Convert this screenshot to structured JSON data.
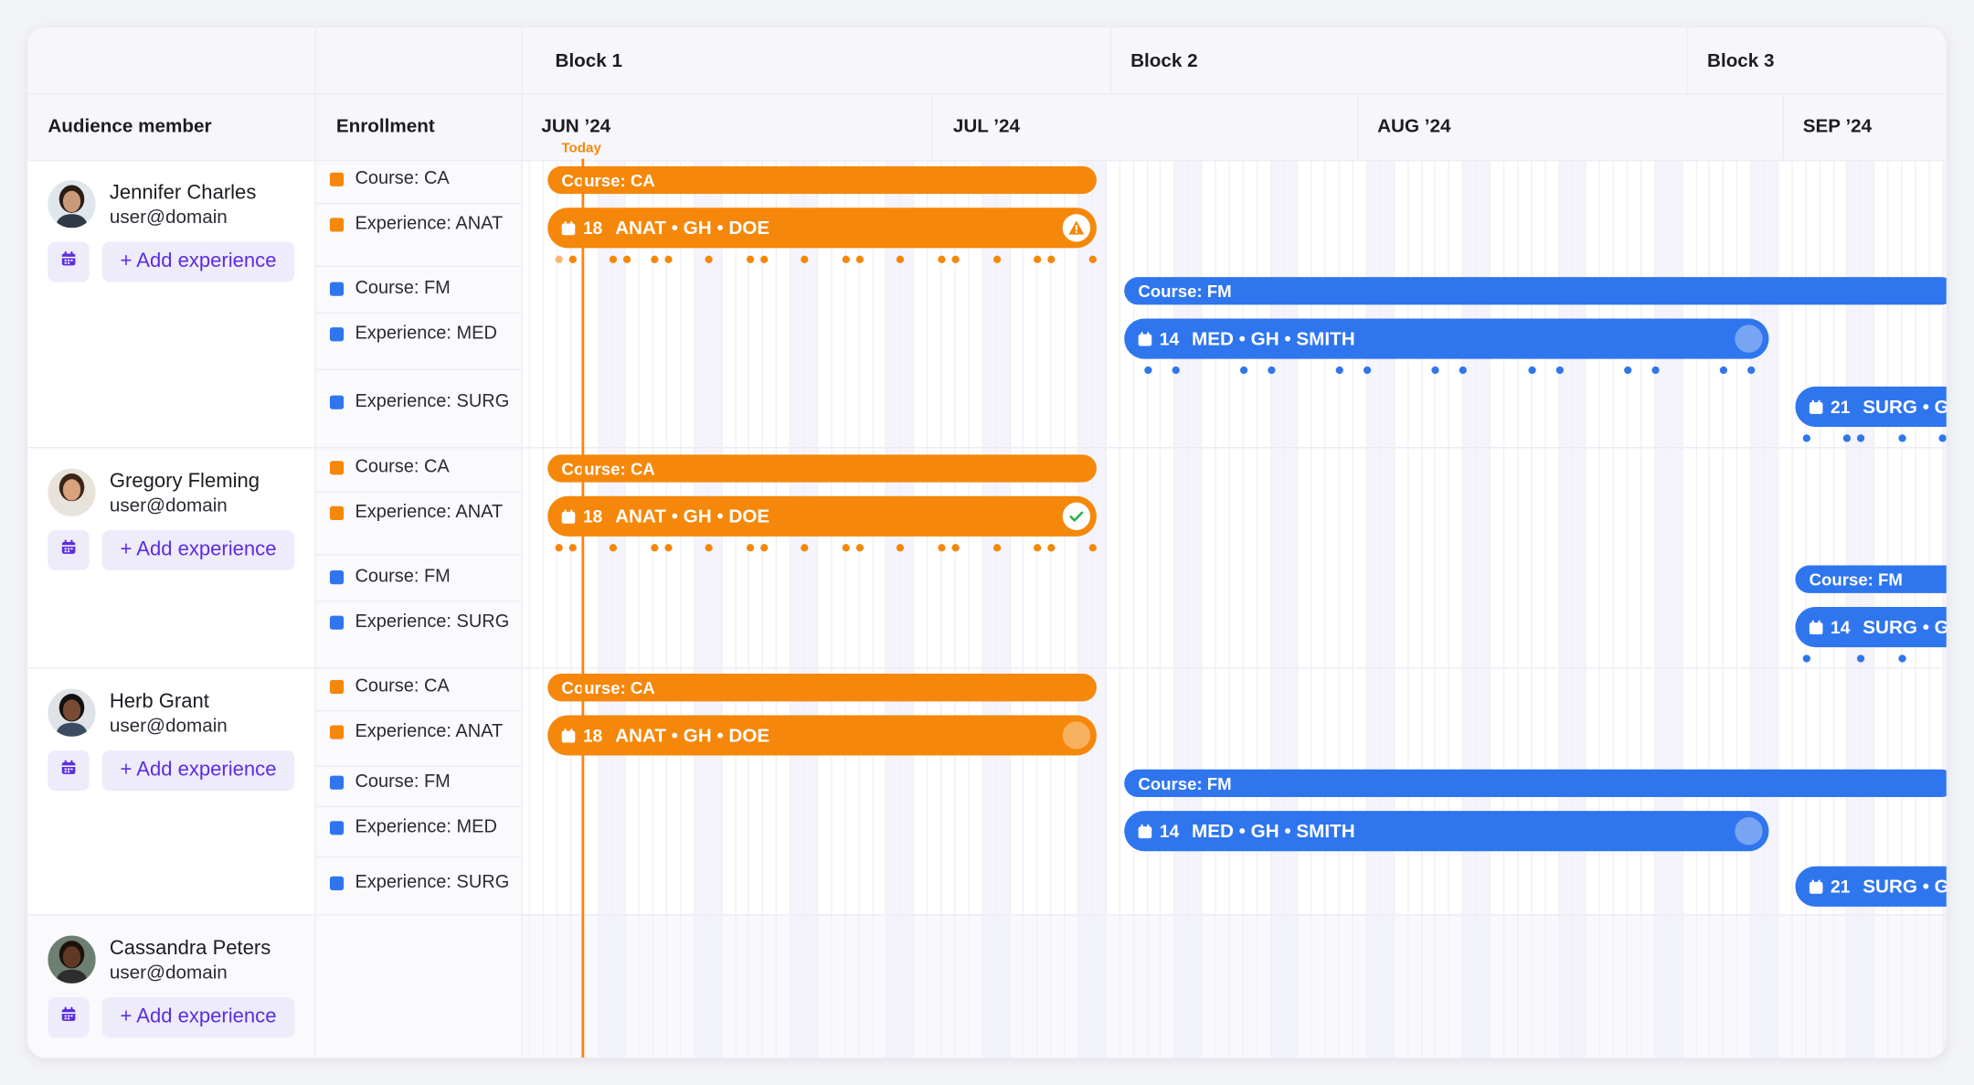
{
  "colors": {
    "orange": "#f5870a",
    "blue": "#2f76ee",
    "purple": "#5b2ee0",
    "purple_bg": "#eeebfb",
    "today": "#f5870a"
  },
  "header": {
    "blocks": [
      {
        "label": "Block 1"
      },
      {
        "label": "Block 2"
      },
      {
        "label": "Block 3"
      }
    ],
    "audience_col": "Audience member",
    "enrollment_col": "Enrollment",
    "months": [
      {
        "label": "JUN ’24"
      },
      {
        "label": "JUL ’24"
      },
      {
        "label": "AUG ’24"
      },
      {
        "label": "SEP ’24"
      }
    ],
    "today_label": "Today"
  },
  "add_label": "+ Add experience",
  "people": [
    {
      "name": "Jennifer Charles",
      "email": "user@domain",
      "enrollment": [
        {
          "label": "Course: CA",
          "color": "orange"
        },
        {
          "label": "Experience: ANAT",
          "color": "orange"
        },
        {
          "label": "Course: FM",
          "color": "blue"
        },
        {
          "label": "Experience: MED",
          "color": "blue"
        },
        {
          "label": "Experience: SURG",
          "color": "blue"
        }
      ],
      "bars": [
        {
          "kind": "course",
          "label": "Course: CA",
          "color": "orange"
        },
        {
          "kind": "exp",
          "count": "18",
          "label": "ANAT • GH • DOE",
          "color": "orange",
          "status": "warning"
        },
        {
          "kind": "course",
          "label": "Course: FM",
          "color": "blue"
        },
        {
          "kind": "exp",
          "count": "14",
          "label": "MED • GH • SMITH",
          "color": "blue",
          "status": "pending"
        },
        {
          "kind": "exp",
          "count": "21",
          "label": "SURG • G",
          "color": "blue",
          "status": "none"
        }
      ]
    },
    {
      "name": "Gregory Fleming",
      "email": "user@domain",
      "enrollment": [
        {
          "label": "Course: CA",
          "color": "orange"
        },
        {
          "label": "Experience: ANAT",
          "color": "orange"
        },
        {
          "label": "Course: FM",
          "color": "blue"
        },
        {
          "label": "Experience: SURG",
          "color": "blue"
        }
      ],
      "bars": [
        {
          "kind": "course",
          "label": "Course: CA",
          "color": "orange"
        },
        {
          "kind": "exp",
          "count": "18",
          "label": "ANAT • GH • DOE",
          "color": "orange",
          "status": "done"
        },
        {
          "kind": "course",
          "label": "Course: FM",
          "color": "blue"
        },
        {
          "kind": "exp",
          "count": "14",
          "label": "SURG • G",
          "color": "blue",
          "status": "none"
        }
      ]
    },
    {
      "name": "Herb Grant",
      "email": "user@domain",
      "enrollment": [
        {
          "label": "Course: CA",
          "color": "orange"
        },
        {
          "label": "Experience: ANAT",
          "color": "orange"
        },
        {
          "label": "Course: FM",
          "color": "blue"
        },
        {
          "label": "Experience: MED",
          "color": "blue"
        },
        {
          "label": "Experience: SURG",
          "color": "blue"
        }
      ],
      "bars": [
        {
          "kind": "course",
          "label": "Course: CA",
          "color": "orange"
        },
        {
          "kind": "exp",
          "count": "18",
          "label": "ANAT • GH • DOE",
          "color": "orange",
          "status": "pending"
        },
        {
          "kind": "course",
          "label": "Course: FM",
          "color": "blue"
        },
        {
          "kind": "exp",
          "count": "14",
          "label": "MED • GH • SMITH",
          "color": "blue",
          "status": "pending"
        },
        {
          "kind": "exp",
          "count": "21",
          "label": "SURG • G",
          "color": "blue",
          "status": "none"
        }
      ]
    },
    {
      "name": "Cassandra Peters",
      "email": "user@domain",
      "enrollment": [],
      "bars": []
    }
  ]
}
